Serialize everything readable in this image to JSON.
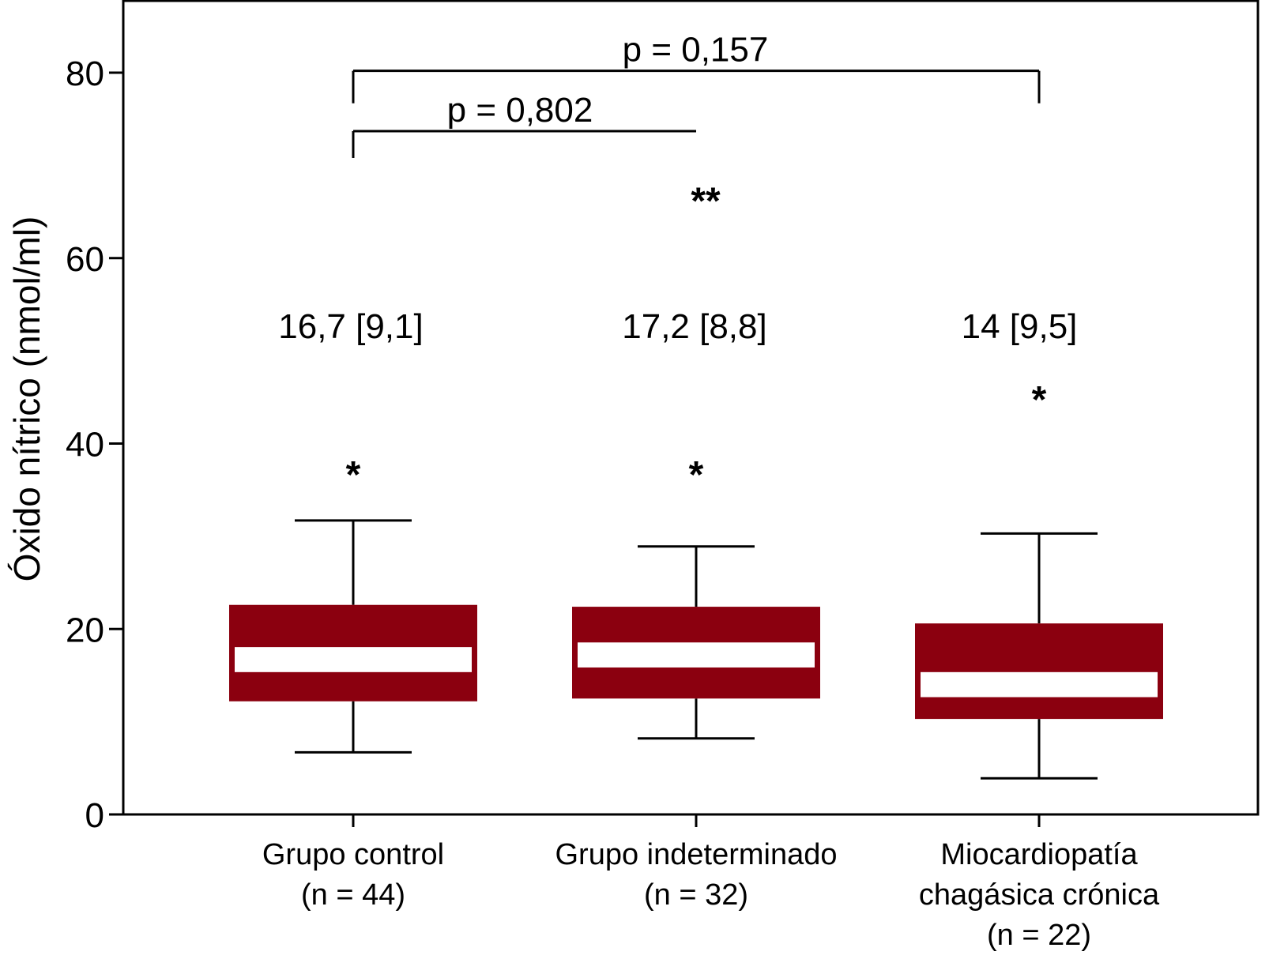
{
  "chart_data": {
    "type": "box",
    "ylabel": "Óxido nítrico (nmol/ml)",
    "ylim": [
      0,
      87
    ],
    "yticks": [
      0,
      20,
      40,
      60,
      80
    ],
    "grid": false,
    "box_color": "#8b000f",
    "median_color": "#ffffff",
    "line_color": "#000000",
    "groups": [
      {
        "label_lines": [
          "Grupo control",
          "(n = 44)"
        ],
        "whisker_low": 6.7,
        "q1": 12.2,
        "median": 16.7,
        "q3": 22.6,
        "whisker_high": 31.7,
        "summary": "16,7 [9,1]",
        "outliers": [
          {
            "y": 37.5,
            "marker": "*"
          }
        ]
      },
      {
        "label_lines": [
          "Grupo indeterminado",
          "(n = 32)"
        ],
        "whisker_low": 8.2,
        "q1": 12.5,
        "median": 17.2,
        "q3": 22.4,
        "whisker_high": 28.9,
        "summary": "17,2 [8,8]",
        "outliers": [
          {
            "y": 37.5,
            "marker": "*"
          },
          {
            "y": 67.0,
            "marker": "**"
          }
        ]
      },
      {
        "label_lines": [
          "Miocardiopatía",
          "chagásica crónica",
          "(n = 22)"
        ],
        "whisker_low": 3.9,
        "q1": 10.3,
        "median": 14.0,
        "q3": 20.6,
        "whisker_high": 30.3,
        "summary": "14 [9,5]",
        "outliers": [
          {
            "y": 45.6,
            "marker": "*"
          }
        ]
      }
    ],
    "comparisons": [
      {
        "from": 0,
        "to": 1,
        "label": "p = 0,802",
        "y": 73.7,
        "drop_from": 70.8,
        "drop_to": 73.7
      },
      {
        "from": 0,
        "to": 2,
        "label": "p = 0,157",
        "y": 80.2,
        "drop_from": 76.7,
        "drop_to": 76.7
      }
    ]
  }
}
